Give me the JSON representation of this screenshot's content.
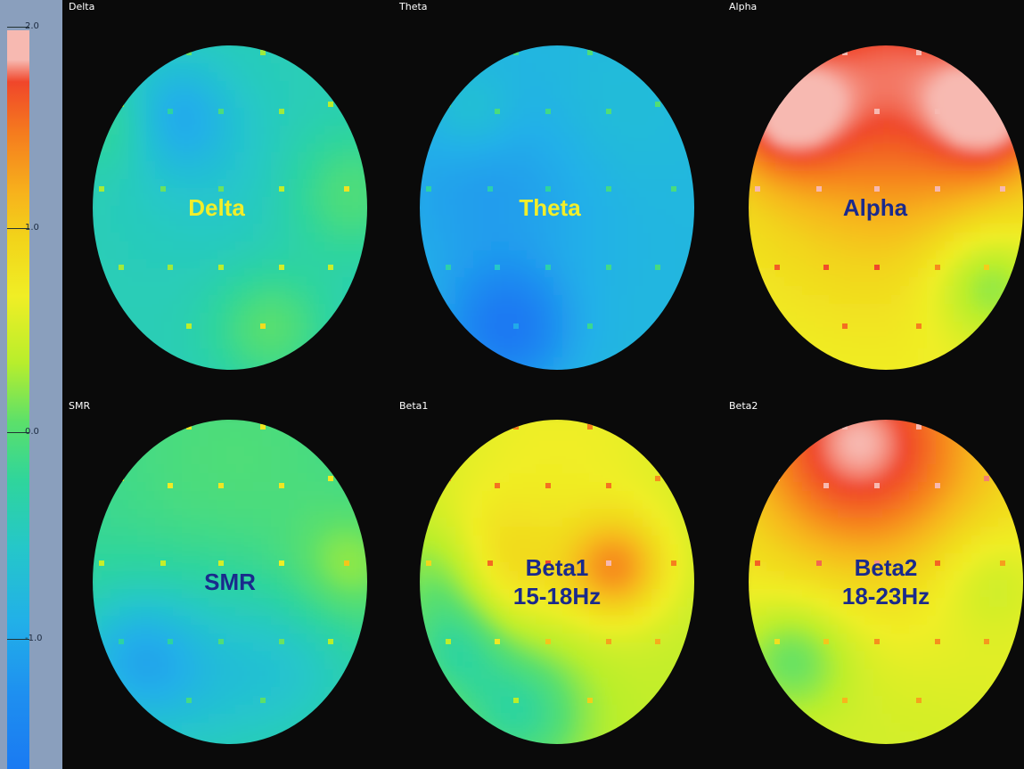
{
  "chart_data": {
    "type": "heatmap",
    "title": "",
    "colorbar": {
      "range": [
        -1.75,
        2.0
      ],
      "ticks": [
        {
          "value": 2.0,
          "label": "2.0"
        },
        {
          "value": 1.0,
          "label": "1.0"
        },
        {
          "value": 0.0,
          "label": "0.0"
        },
        {
          "value": -1.0,
          "label": "-1.0"
        }
      ]
    },
    "panels": [
      {
        "name": "Delta",
        "title": "Delta",
        "label_lines": [
          "Delta"
        ],
        "label_color": "#f2ee2a",
        "base": -0.55
      },
      {
        "name": "Theta",
        "title": "Theta",
        "label_lines": [
          "Theta"
        ],
        "label_color": "#f2ee2a",
        "base": -0.95
      },
      {
        "name": "Alpha",
        "title": "Alpha",
        "label_lines": [
          "Alpha"
        ],
        "label_color": "#1a2a8c",
        "base": 0.55
      },
      {
        "name": "SMR",
        "title": "SMR",
        "label_lines": [
          "SMR"
        ],
        "label_color": "#1a2a8c",
        "base": -0.35
      },
      {
        "name": "Beta1",
        "title": "Beta1",
        "label_lines": [
          "Beta1",
          "15-18Hz"
        ],
        "label_color": "#1a2a8c",
        "base": 0.35
      },
      {
        "name": "Beta2",
        "title": "Beta2",
        "label_lines": [
          "Beta2",
          "18-23Hz"
        ],
        "label_color": "#1a2a8c",
        "base": 0.55
      }
    ]
  }
}
